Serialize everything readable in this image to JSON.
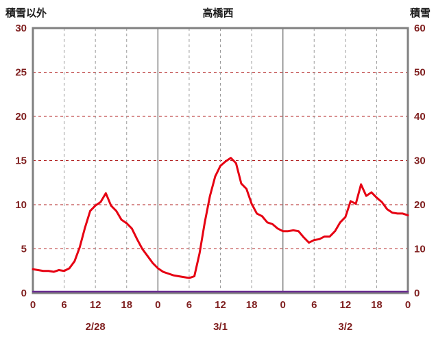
{
  "header": {
    "left_axis_title": "積雪以外",
    "chart_title": "高橋西",
    "right_axis_title": "積雪"
  },
  "chart_data": {
    "type": "line",
    "title": "高橋西",
    "x_hours_total": 72,
    "x_ticks": [
      0,
      6,
      12,
      18,
      24,
      30,
      36,
      42,
      48,
      54,
      60,
      66,
      72
    ],
    "x_tick_labels": [
      "0",
      "6",
      "12",
      "18",
      "0",
      "6",
      "12",
      "18",
      "0",
      "6",
      "12",
      "18",
      "0"
    ],
    "day_boundaries": [
      24,
      48
    ],
    "date_labels": [
      {
        "label": "2/28",
        "hour": 12
      },
      {
        "label": "3/1",
        "hour": 36
      },
      {
        "label": "3/2",
        "hour": 60
      }
    ],
    "left_axis": {
      "label": "積雪以外",
      "min": 0,
      "max": 30,
      "ticks": [
        0,
        5,
        10,
        15,
        20,
        25,
        30
      ]
    },
    "right_axis": {
      "label": "積雪",
      "min": 0,
      "max": 60,
      "ticks": [
        0,
        10,
        20,
        30,
        40,
        50,
        60
      ]
    },
    "series": [
      {
        "name": "積雪",
        "axis": "right",
        "color": "#6a2c91",
        "width": 2.5,
        "x": [
          0,
          72
        ],
        "values": [
          0,
          0
        ]
      },
      {
        "name": "積雪以外",
        "axis": "left",
        "color": "#e60012",
        "width": 3,
        "x": [
          0,
          1,
          2,
          3,
          4,
          5,
          6,
          7,
          8,
          9,
          10,
          11,
          12,
          13,
          14,
          15,
          16,
          17,
          18,
          19,
          20,
          21,
          22,
          23,
          24,
          25,
          26,
          27,
          28,
          29,
          30,
          31,
          32,
          33,
          34,
          35,
          36,
          37,
          38,
          39,
          40,
          41,
          42,
          43,
          44,
          45,
          46,
          47,
          48,
          49,
          50,
          51,
          52,
          53,
          54,
          55,
          56,
          57,
          58,
          59,
          60,
          61,
          62,
          63,
          64,
          65,
          66,
          67,
          68,
          69,
          70,
          71,
          72
        ],
        "values": [
          2.7,
          2.6,
          2.5,
          2.5,
          2.4,
          2.6,
          2.5,
          2.8,
          3.6,
          5.2,
          7.4,
          9.3,
          9.9,
          10.3,
          11.3,
          9.9,
          9.3,
          8.3,
          7.9,
          7.3,
          6.1,
          5.0,
          4.2,
          3.4,
          2.8,
          2.4,
          2.2,
          2.0,
          1.9,
          1.8,
          1.7,
          1.9,
          4.5,
          8.0,
          11.0,
          13.2,
          14.4,
          14.9,
          15.3,
          14.7,
          12.4,
          11.8,
          10.1,
          9.0,
          8.7,
          8.0,
          7.8,
          7.3,
          7.0,
          7.0,
          7.1,
          7.0,
          6.3,
          5.7,
          6.0,
          6.1,
          6.4,
          6.4,
          7.0,
          8.0,
          8.6,
          10.4,
          10.1,
          12.3,
          11.0,
          11.4,
          10.8,
          10.3,
          9.5,
          9.1,
          9.0,
          9.0,
          8.8
        ]
      }
    ],
    "style": {
      "background": "#ffffff",
      "border_color": "#808080",
      "h_grid_color": "#b22222",
      "v_grid_color": "#9a9a9a",
      "day_line_color": "#808080",
      "tick_color": "#7f1f1f"
    },
    "legend": "none",
    "grid": "on"
  }
}
